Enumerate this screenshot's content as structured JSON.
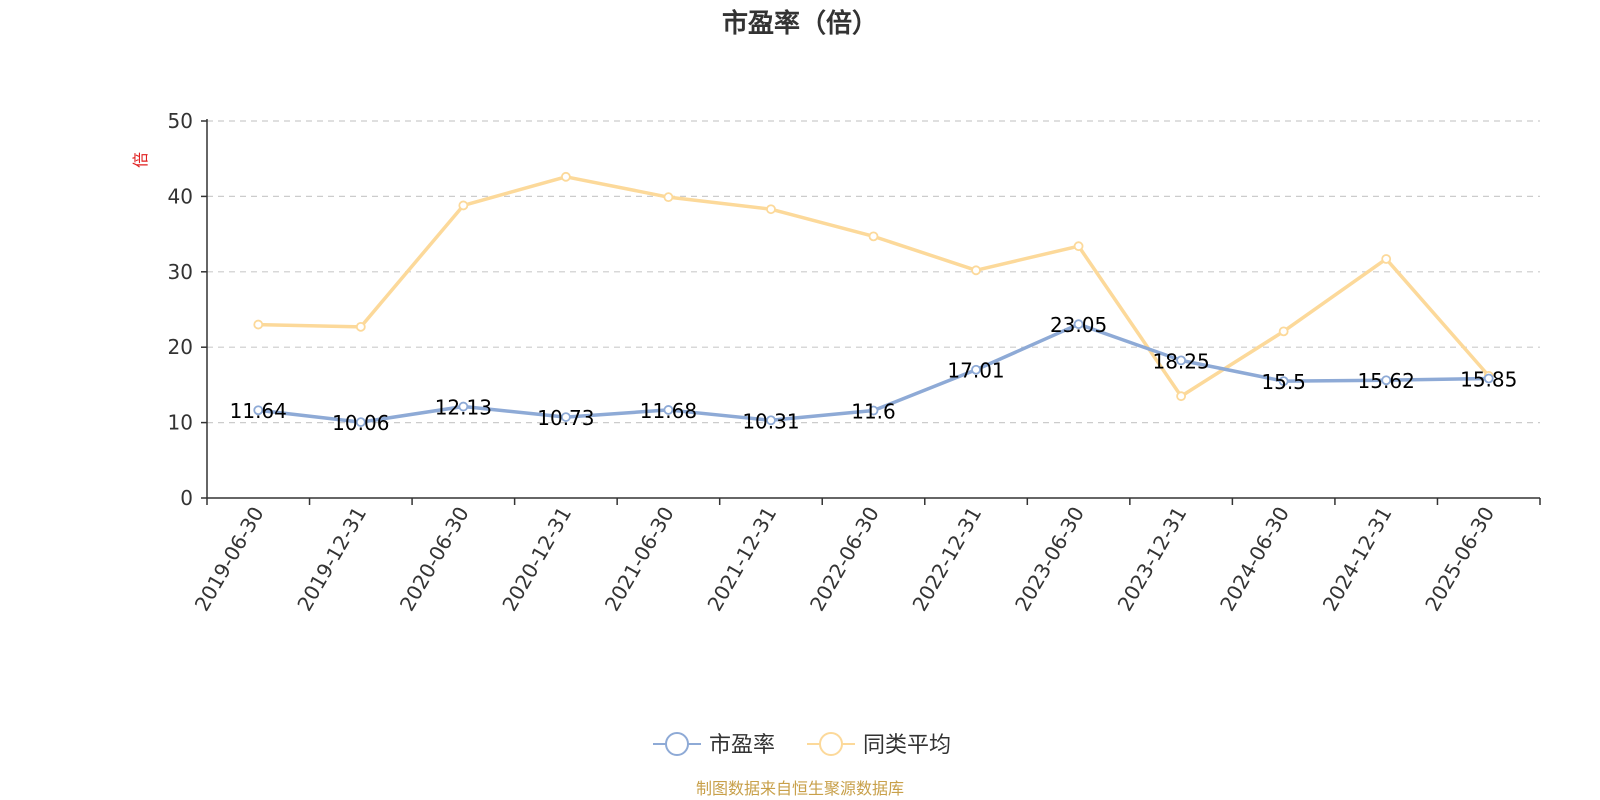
{
  "chart_data": {
    "type": "line",
    "title": "市盈率（倍）",
    "ylabel": "倍",
    "xlabel": "",
    "ylim": [
      0,
      50
    ],
    "yticks": [
      0,
      10,
      20,
      30,
      40,
      50
    ],
    "categories": [
      "2019-06-30",
      "2019-12-31",
      "2020-06-30",
      "2020-12-31",
      "2021-06-30",
      "2021-12-31",
      "2022-06-30",
      "2022-12-31",
      "2023-06-30",
      "2023-12-31",
      "2024-06-30",
      "2024-12-31",
      "2025-06-30"
    ],
    "series": [
      {
        "name": "市盈率",
        "color": "#8eaad6",
        "values": [
          11.64,
          10.06,
          12.13,
          10.73,
          11.68,
          10.31,
          11.6,
          17.01,
          23.05,
          18.25,
          15.5,
          15.62,
          15.85
        ],
        "labels": [
          "11.64",
          "10.06",
          "12.13",
          "10.73",
          "11.68",
          "10.31",
          "11.6",
          "17.01",
          "23.05",
          "18.25",
          "15.5",
          "15.62",
          "15.85"
        ]
      },
      {
        "name": "同类平均",
        "color": "#fcd99a",
        "values": [
          23.0,
          22.7,
          38.8,
          42.6,
          39.9,
          38.3,
          34.7,
          30.2,
          33.4,
          13.5,
          22.1,
          31.7,
          16.2
        ]
      }
    ],
    "grid": true,
    "legend_position": "bottom-center"
  },
  "source": "制图数据来自恒生聚源数据库"
}
